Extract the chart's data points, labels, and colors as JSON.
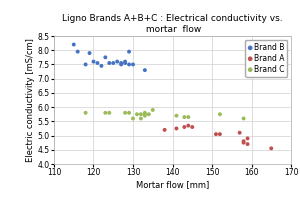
{
  "title": "Ligno Brands A+B+C : Electrical conductivity vs.\n mortar  flow",
  "xlabel": "Mortar flow [mm]",
  "ylabel": "Electric conductivity [mS/cm]",
  "xlim": [
    110,
    170
  ],
  "ylim": [
    4.0,
    8.5
  ],
  "xticks": [
    110,
    120,
    130,
    140,
    150,
    160,
    170
  ],
  "yticks": [
    4.0,
    4.5,
    5.0,
    5.5,
    6.0,
    6.5,
    7.0,
    7.5,
    8.0,
    8.5
  ],
  "brand_B": {
    "color": "#4472C4",
    "label": "Brand B",
    "x": [
      115,
      116,
      118,
      119,
      120,
      121,
      122,
      123,
      124,
      125,
      126,
      127,
      127,
      128,
      128,
      129,
      129,
      130,
      133
    ],
    "y": [
      8.2,
      7.95,
      7.5,
      7.9,
      7.6,
      7.55,
      7.45,
      7.75,
      7.55,
      7.55,
      7.6,
      7.55,
      7.5,
      7.6,
      7.55,
      7.5,
      7.95,
      7.5,
      7.3
    ]
  },
  "brand_A": {
    "color": "#C0504D",
    "label": "Brand A",
    "x": [
      138,
      141,
      143,
      144,
      145,
      151,
      152,
      157,
      158,
      158,
      159,
      159,
      165
    ],
    "y": [
      5.2,
      5.25,
      5.3,
      5.35,
      5.3,
      5.05,
      5.05,
      5.1,
      4.75,
      4.8,
      4.9,
      4.7,
      4.55
    ]
  },
  "brand_C": {
    "color": "#9BBB59",
    "label": "Brand C",
    "x": [
      118,
      123,
      124,
      128,
      129,
      130,
      131,
      132,
      132,
      133,
      133,
      133,
      134,
      135,
      141,
      143,
      144,
      152,
      158
    ],
    "y": [
      5.8,
      5.8,
      5.8,
      5.8,
      5.8,
      5.6,
      5.75,
      5.75,
      5.6,
      5.7,
      5.75,
      5.8,
      5.75,
      5.9,
      5.7,
      5.65,
      5.65,
      5.75,
      5.6
    ]
  },
  "background_color": "#ffffff",
  "grid_color": "#d0d0d0",
  "title_fontsize": 6.5,
  "label_fontsize": 6.0,
  "tick_fontsize": 5.5,
  "legend_fontsize": 5.5,
  "marker_size": 8
}
